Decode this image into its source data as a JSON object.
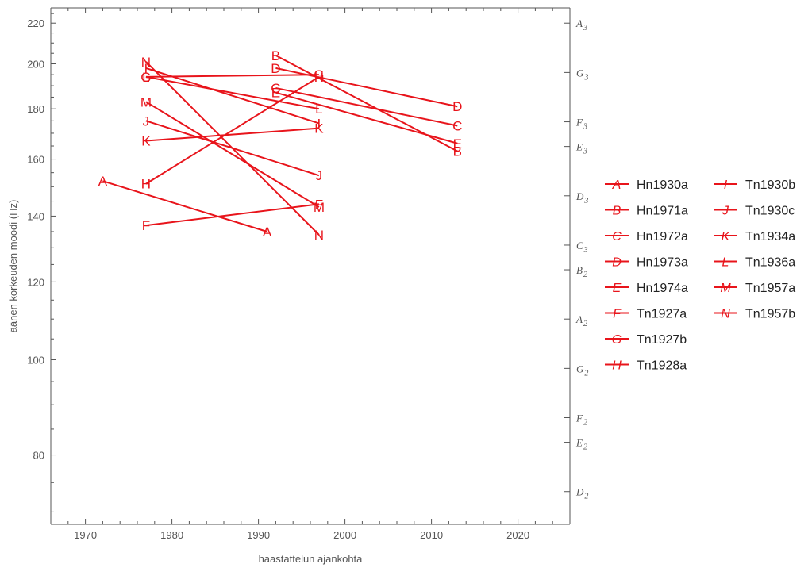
{
  "chart_data": {
    "type": "line",
    "xlabel": "haastattelun ajankohta",
    "ylabel": "äänen korkeuden moodi (Hz)",
    "xlim": [
      1966,
      2026
    ],
    "ylim": [
      68,
      228
    ],
    "y_scale": "log",
    "x_ticks": [
      1970,
      1980,
      1990,
      2000,
      2010,
      2020
    ],
    "y_ticks": [
      80,
      100,
      120,
      140,
      160,
      180,
      200,
      220
    ],
    "right_axis_notes": [
      {
        "letter": "D",
        "octave": "2",
        "hz": 73.42
      },
      {
        "letter": "E",
        "octave": "2",
        "hz": 82.41
      },
      {
        "letter": "F",
        "octave": "2",
        "hz": 87.31
      },
      {
        "letter": "G",
        "octave": "2",
        "hz": 98.0
      },
      {
        "letter": "A",
        "octave": "2",
        "hz": 110.0
      },
      {
        "letter": "B",
        "octave": "2",
        "hz": 123.47
      },
      {
        "letter": "C",
        "octave": "3",
        "hz": 130.81
      },
      {
        "letter": "D",
        "octave": "3",
        "hz": 146.83
      },
      {
        "letter": "E",
        "octave": "3",
        "hz": 164.81
      },
      {
        "letter": "F",
        "octave": "3",
        "hz": 174.61
      },
      {
        "letter": "G",
        "octave": "3",
        "hz": 196.0
      },
      {
        "letter": "A",
        "octave": "3",
        "hz": 220.0
      }
    ],
    "series": [
      {
        "name": "Hn1930a",
        "marker": "A",
        "points": [
          [
            1972,
            152
          ],
          [
            1991,
            135
          ]
        ]
      },
      {
        "name": "Hn1971a",
        "marker": "B",
        "points": [
          [
            1992,
            204
          ],
          [
            2013,
            163
          ]
        ]
      },
      {
        "name": "Hn1972a",
        "marker": "C",
        "points": [
          [
            1992,
            189
          ],
          [
            2013,
            173
          ]
        ]
      },
      {
        "name": "Hn1973a",
        "marker": "D",
        "points": [
          [
            1992,
            198
          ],
          [
            2013,
            181
          ]
        ]
      },
      {
        "name": "Hn1974a",
        "marker": "E",
        "points": [
          [
            1992,
            187
          ],
          [
            2013,
            166
          ]
        ]
      },
      {
        "name": "Tn1927a",
        "marker": "F",
        "points": [
          [
            1977,
            137
          ],
          [
            1997,
            144
          ]
        ]
      },
      {
        "name": "Tn1927b",
        "marker": "G",
        "points": [
          [
            1977,
            194
          ],
          [
            1997,
            195
          ]
        ]
      },
      {
        "name": "Tn1928a",
        "marker": "H",
        "points": [
          [
            1977,
            151
          ],
          [
            1997,
            194
          ]
        ]
      },
      {
        "name": "Tn1930b",
        "marker": "I",
        "points": [
          [
            1977,
            198
          ],
          [
            1997,
            174
          ]
        ]
      },
      {
        "name": "Tn1930c",
        "marker": "J",
        "points": [
          [
            1977,
            175
          ],
          [
            1997,
            154
          ]
        ]
      },
      {
        "name": "Tn1934a",
        "marker": "K",
        "points": [
          [
            1977,
            167
          ],
          [
            1997,
            172
          ]
        ]
      },
      {
        "name": "Tn1936a",
        "marker": "L",
        "points": [
          [
            1977,
            194
          ],
          [
            1997,
            180
          ]
        ]
      },
      {
        "name": "Tn1957a",
        "marker": "M",
        "points": [
          [
            1977,
            183
          ],
          [
            1997,
            143
          ]
        ]
      },
      {
        "name": "Tn1957b",
        "marker": "N",
        "points": [
          [
            1977,
            201
          ],
          [
            1997,
            134
          ]
        ]
      }
    ],
    "legend": "right, two columns",
    "colors": {
      "series": "#e8141b",
      "axis": "#555555",
      "tick_text": "#555555"
    }
  }
}
